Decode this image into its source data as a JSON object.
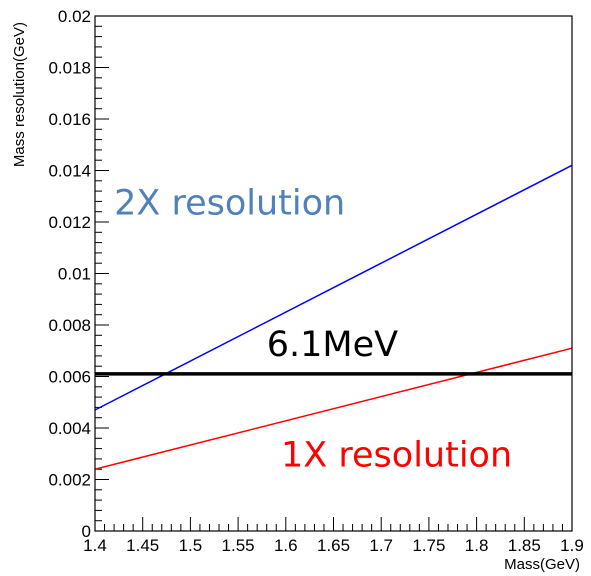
{
  "chart_data": {
    "type": "line",
    "title": "",
    "xlabel": "Mass(GeV)",
    "ylabel": "Mass resolution(GeV)",
    "xlim": [
      1.4,
      1.9
    ],
    "ylim": [
      0,
      0.02
    ],
    "x_ticks": [
      "1.4",
      "1.45",
      "1.5",
      "1.55",
      "1.6",
      "1.65",
      "1.7",
      "1.75",
      "1.8",
      "1.85",
      "1.9"
    ],
    "y_ticks": [
      "0",
      "0.002",
      "0.004",
      "0.006",
      "0.008",
      "0.01",
      "0.012",
      "0.014",
      "0.016",
      "0.018",
      "0.02"
    ],
    "grid": false,
    "legend": "none",
    "series": [
      {
        "id": "two-x",
        "x": [
          1.4,
          1.9
        ],
        "y": [
          0.0047,
          0.0142
        ],
        "color": "#0000ff"
      },
      {
        "id": "one-x",
        "x": [
          1.4,
          1.9
        ],
        "y": [
          0.0024,
          0.0071
        ],
        "color": "#ff0000"
      },
      {
        "id": "reference",
        "x": [
          1.4,
          1.9
        ],
        "y": [
          0.0061,
          0.0061
        ],
        "color": "#000000"
      }
    ],
    "annotations": [
      {
        "text": "2X resolution",
        "x": 1.42,
        "y": 0.0123,
        "color": "#4f81bd"
      },
      {
        "text": "6.1MeV",
        "x": 1.58,
        "y": 0.0068,
        "color": "#000000"
      },
      {
        "text": "1X resolution",
        "x": 1.595,
        "y": 0.0025,
        "color": "#ff0000"
      }
    ]
  }
}
